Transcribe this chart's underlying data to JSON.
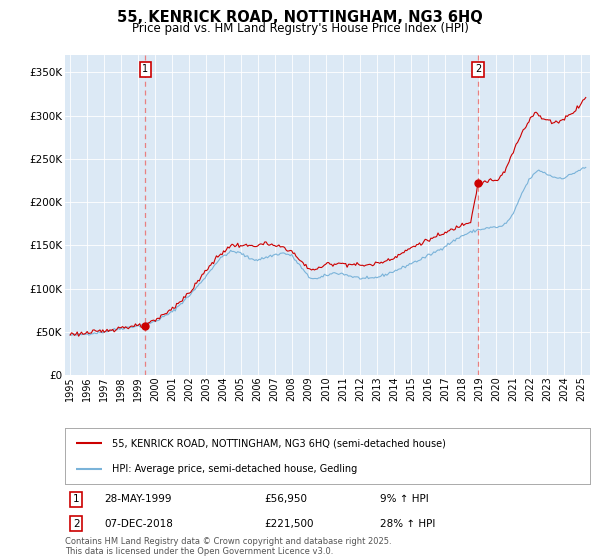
{
  "title": "55, KENRICK ROAD, NOTTINGHAM, NG3 6HQ",
  "subtitle": "Price paid vs. HM Land Registry's House Price Index (HPI)",
  "title_fontsize": 10.5,
  "subtitle_fontsize": 8.5,
  "background_color": "#ffffff",
  "plot_bg_color": "#dce9f5",
  "grid_color": "#ffffff",
  "red_color": "#cc0000",
  "blue_color": "#7ab3d9",
  "legend_label_red": "55, KENRICK ROAD, NOTTINGHAM, NG3 6HQ (semi-detached house)",
  "legend_label_blue": "HPI: Average price, semi-detached house, Gedling",
  "annotation1_label": "1",
  "annotation2_label": "2",
  "annotation1_date": "28-MAY-1999",
  "annotation1_price": "£56,950",
  "annotation1_hpi": "9% ↑ HPI",
  "annotation2_date": "07-DEC-2018",
  "annotation2_price": "£221,500",
  "annotation2_hpi": "28% ↑ HPI",
  "vline1_x": 1999.42,
  "vline2_x": 2018.93,
  "point1_x": 1999.42,
  "point1_y": 56950,
  "point2_x": 2018.93,
  "point2_y": 221500,
  "ylim": [
    0,
    370000
  ],
  "xlim_start": 1994.7,
  "xlim_end": 2025.5,
  "footer": "Contains HM Land Registry data © Crown copyright and database right 2025.\nThis data is licensed under the Open Government Licence v3.0."
}
